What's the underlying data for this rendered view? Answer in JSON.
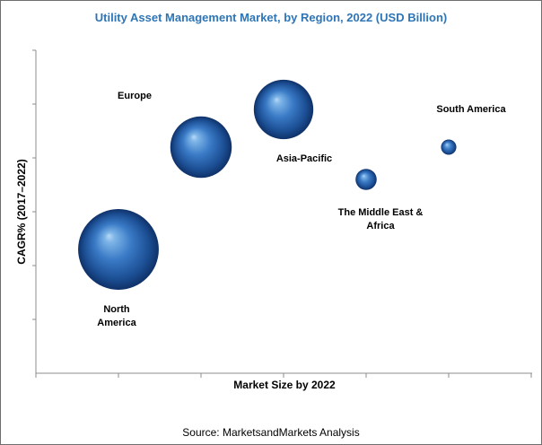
{
  "chart_data": {
    "type": "scatter",
    "title": "Utility Asset Management Market, by Region, 2022 (USD Billion)",
    "xlabel": "Market Size by 2022",
    "ylabel": "CAGR% (2017–2022)",
    "grid": false,
    "source": "Source: MarketsandMarkets Analysis",
    "points": [
      {
        "label": "North America",
        "label_lines": [
          "North",
          "America"
        ],
        "x": 1,
        "y": 2.3,
        "size": 2.1
      },
      {
        "label": "Europe",
        "label_lines": [
          "Europe"
        ],
        "x": 2,
        "y": 4.2,
        "size": 1.6
      },
      {
        "label": "Asia-Pacific",
        "label_lines": [
          "Asia-Pacific"
        ],
        "x": 3,
        "y": 4.9,
        "size": 1.55
      },
      {
        "label": "The Middle East & Africa",
        "label_lines": [
          "The Middle East &",
          "Africa"
        ],
        "x": 4,
        "y": 3.6,
        "size": 0.55
      },
      {
        "label": "South America",
        "label_lines": [
          "South America"
        ],
        "x": 5,
        "y": 4.2,
        "size": 0.4
      }
    ]
  }
}
